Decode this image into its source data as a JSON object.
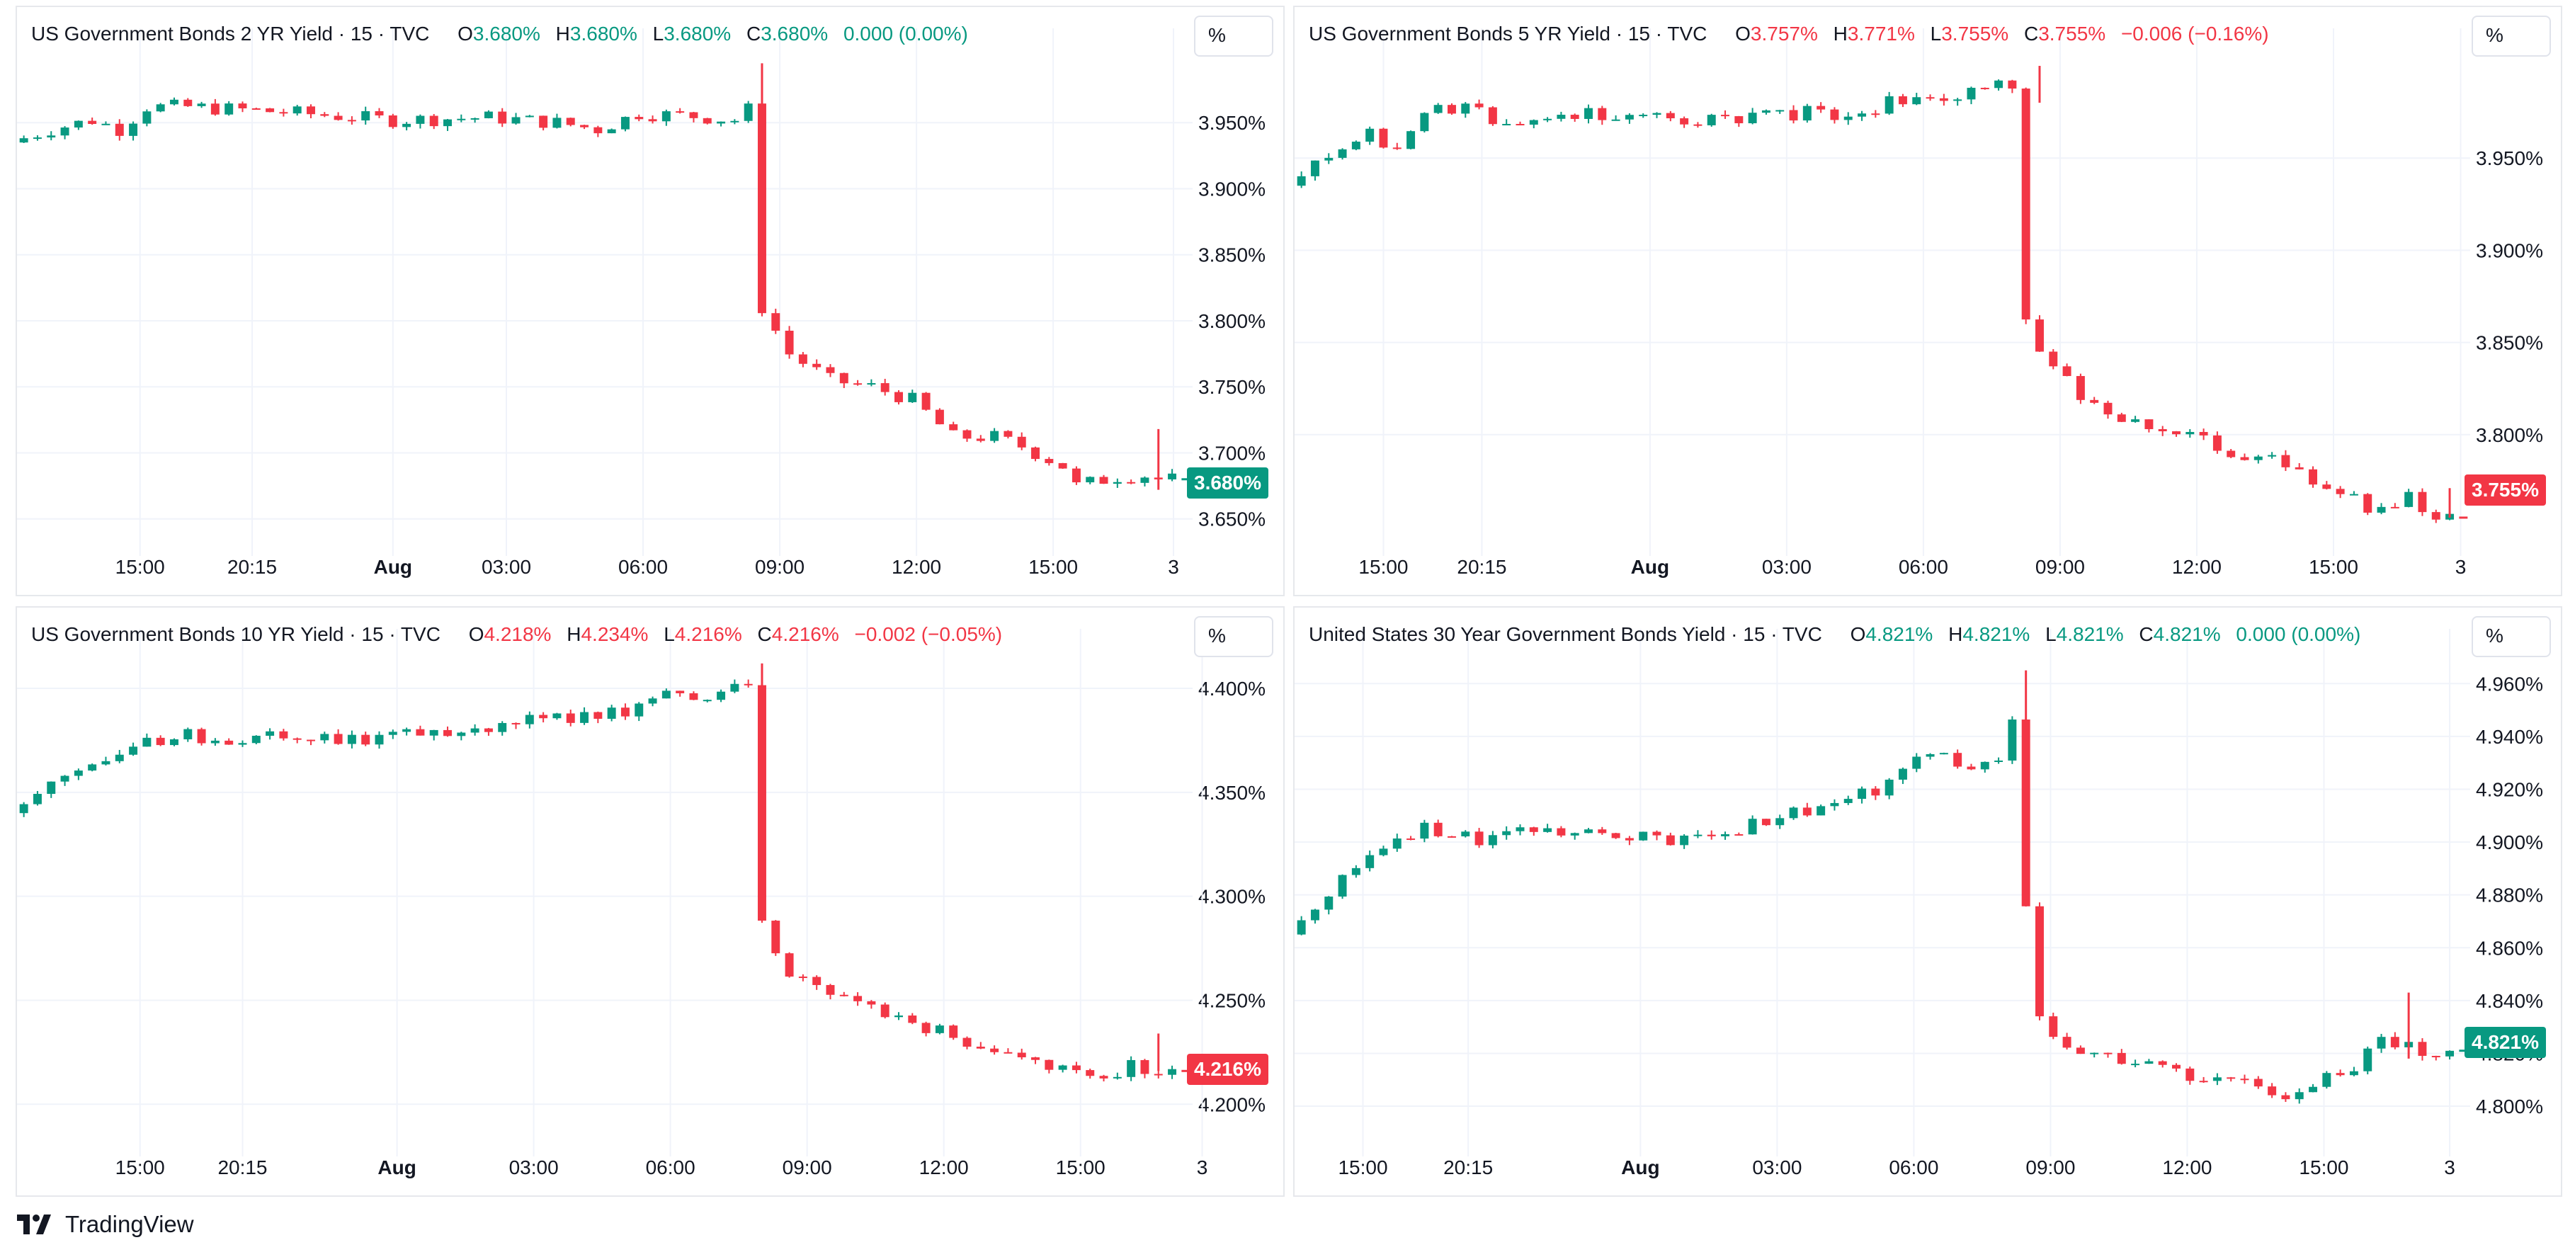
{
  "branding": {
    "label": "TradingView",
    "logo_icon": "tradingview-logo-icon"
  },
  "colors": {
    "up": "#089981",
    "down": "#f23645",
    "grid": "#f0f3fa",
    "axis_text": "#131722"
  },
  "x_axis_labels": [
    "15:00",
    "20:15",
    "Aug",
    "03:00",
    "06:00",
    "09:00",
    "12:00",
    "15:00",
    "3"
  ],
  "panels": [
    {
      "title": "US Government Bonds 2 YR Yield · 15 · TVC",
      "ohlc": {
        "O": "3.680%",
        "H": "3.680%",
        "L": "3.680%",
        "C": "3.680%",
        "change": "0.000 (0.00%)"
      },
      "direction": "up",
      "unit_button": "%",
      "last_price_label": "3.680%"
    },
    {
      "title": "US Government Bonds 5 YR Yield · 15 · TVC",
      "ohlc": {
        "O": "3.757%",
        "H": "3.771%",
        "L": "3.755%",
        "C": "3.755%",
        "change": "−0.006 (−0.16%)"
      },
      "direction": "down",
      "unit_button": "%",
      "last_price_label": "3.755%"
    },
    {
      "title": "US Government Bonds 10 YR Yield · 15 · TVC",
      "ohlc": {
        "O": "4.218%",
        "H": "4.234%",
        "L": "4.216%",
        "C": "4.216%",
        "change": "−0.002 (−0.05%)"
      },
      "direction": "down",
      "unit_button": "%",
      "last_price_label": "4.216%"
    },
    {
      "title": "United States 30 Year Government Bonds Yield · 15 · TVC",
      "ohlc": {
        "O": "4.821%",
        "H": "4.821%",
        "L": "4.821%",
        "C": "4.821%",
        "change": "0.000 (0.00%)"
      },
      "direction": "up",
      "unit_button": "%",
      "last_price_label": "4.821%"
    }
  ],
  "chart_data": [
    {
      "type": "candlestick",
      "series_name": "US Government Bonds 2 YR Yield",
      "ylim": [
        3.63,
        4.0
      ],
      "y_ticks": [
        "3.950%",
        "3.900%",
        "3.850%",
        "3.800%",
        "3.750%",
        "3.700%",
        "3.650%"
      ],
      "y_tick_values": [
        3.95,
        3.9,
        3.85,
        3.8,
        3.75,
        3.7,
        3.65
      ],
      "x_labels": [
        "15:00",
        "20:15",
        "Aug",
        "03:00",
        "06:00",
        "09:00",
        "12:00",
        "15:00",
        "3"
      ],
      "x_label_positions": [
        8.5,
        16.7,
        27.0,
        35.3,
        45.3,
        55.3,
        65.3,
        75.3,
        84.1
      ],
      "last": 3.68,
      "anchors": [
        [
          0,
          3.935
        ],
        [
          3,
          3.945
        ],
        [
          6,
          3.952
        ],
        [
          8,
          3.945
        ],
        [
          10,
          3.962
        ],
        [
          13,
          3.962
        ],
        [
          20,
          3.958
        ],
        [
          28,
          3.952
        ],
        [
          35,
          3.954
        ],
        [
          40,
          3.95
        ],
        [
          43,
          3.945
        ],
        [
          46,
          3.957
        ],
        [
          50,
          3.955
        ],
        [
          53,
          3.952
        ],
        [
          54,
          3.96
        ],
        [
          55,
          3.81
        ],
        [
          57,
          3.775
        ],
        [
          60,
          3.755
        ],
        [
          63,
          3.75
        ],
        [
          66,
          3.74
        ],
        [
          69,
          3.712
        ],
        [
          72,
          3.712
        ],
        [
          74,
          3.705
        ],
        [
          77,
          3.69
        ],
        [
          78,
          3.675
        ],
        [
          81,
          3.682
        ],
        [
          83,
          3.683
        ],
        [
          84,
          3.68
        ]
      ],
      "candles": [],
      "wicks": [
        [
          54,
          3.995,
          3.945
        ],
        [
          83,
          3.718,
          3.672
        ]
      ]
    },
    {
      "type": "candlestick",
      "series_name": "US Government Bonds 5 YR Yield",
      "ylim": [
        3.74,
        4.005
      ],
      "y_ticks": [
        "3.950%",
        "3.900%",
        "3.850%",
        "3.800%"
      ],
      "y_tick_values": [
        3.95,
        3.9,
        3.85,
        3.8
      ],
      "x_labels": [
        "15:00",
        "20:15",
        "Aug",
        "03:00",
        "06:00",
        "09:00",
        "12:00",
        "15:00",
        "3"
      ],
      "x_label_positions": [
        6.0,
        13.2,
        25.5,
        35.5,
        45.5,
        55.5,
        65.5,
        75.5,
        84.8
      ],
      "last": 3.755,
      "anchors": [
        [
          0,
          3.935
        ],
        [
          3,
          3.95
        ],
        [
          6,
          3.962
        ],
        [
          8,
          3.955
        ],
        [
          10,
          3.975
        ],
        [
          13,
          3.978
        ],
        [
          15,
          3.97
        ],
        [
          20,
          3.975
        ],
        [
          28,
          3.972
        ],
        [
          33,
          3.97
        ],
        [
          38,
          3.975
        ],
        [
          41,
          3.97
        ],
        [
          44,
          3.98
        ],
        [
          47,
          3.982
        ],
        [
          50,
          3.985
        ],
        [
          53,
          3.99
        ],
        [
          54,
          3.86
        ],
        [
          56,
          3.835
        ],
        [
          59,
          3.815
        ],
        [
          62,
          3.808
        ],
        [
          66,
          3.8
        ],
        [
          69,
          3.79
        ],
        [
          72,
          3.785
        ],
        [
          75,
          3.775
        ],
        [
          78,
          3.77
        ],
        [
          79,
          3.76
        ],
        [
          82,
          3.765
        ],
        [
          84,
          3.755
        ]
      ],
      "candles": [],
      "wicks": [
        [
          54,
          4.0,
          3.98
        ],
        [
          84,
          3.771,
          3.755
        ]
      ]
    },
    {
      "type": "candlestick",
      "series_name": "US Government Bonds 10 YR Yield",
      "ylim": [
        4.18,
        4.415
      ],
      "y_ticks": [
        "4.400%",
        "4.350%",
        "4.300%",
        "4.250%",
        "4.200%"
      ],
      "y_tick_values": [
        4.4,
        4.35,
        4.3,
        4.25,
        4.2
      ],
      "x_labels": [
        "15:00",
        "20:15",
        "Aug",
        "03:00",
        "06:00",
        "09:00",
        "12:00",
        "15:00",
        "3"
      ],
      "x_label_positions": [
        8.5,
        16.0,
        27.3,
        37.3,
        47.3,
        57.3,
        67.3,
        77.3,
        86.2
      ],
      "last": 4.216,
      "anchors": [
        [
          0,
          4.34
        ],
        [
          3,
          4.352
        ],
        [
          5,
          4.36
        ],
        [
          8,
          4.365
        ],
        [
          10,
          4.375
        ],
        [
          13,
          4.378
        ],
        [
          16,
          4.373
        ],
        [
          20,
          4.378
        ],
        [
          26,
          4.375
        ],
        [
          30,
          4.378
        ],
        [
          35,
          4.382
        ],
        [
          40,
          4.385
        ],
        [
          45,
          4.39
        ],
        [
          47,
          4.398
        ],
        [
          50,
          4.395
        ],
        [
          54,
          4.4
        ],
        [
          55,
          4.29
        ],
        [
          57,
          4.262
        ],
        [
          60,
          4.252
        ],
        [
          63,
          4.248
        ],
        [
          66,
          4.24
        ],
        [
          69,
          4.232
        ],
        [
          72,
          4.228
        ],
        [
          75,
          4.222
        ],
        [
          78,
          4.215
        ],
        [
          80,
          4.212
        ],
        [
          82,
          4.218
        ],
        [
          84,
          4.216
        ]
      ],
      "candles": [],
      "wicks": [
        [
          54,
          4.412,
          4.395
        ],
        [
          83,
          4.234,
          4.216
        ]
      ]
    },
    {
      "type": "candlestick",
      "series_name": "United States 30 Year Government Bonds Yield",
      "ylim": [
        4.785,
        4.97
      ],
      "y_ticks": [
        "4.960%",
        "4.940%",
        "4.920%",
        "4.900%",
        "4.880%",
        "4.860%",
        "4.840%",
        "4.820%",
        "4.800%"
      ],
      "y_tick_values": [
        4.96,
        4.94,
        4.92,
        4.9,
        4.88,
        4.86,
        4.84,
        4.82,
        4.8
      ],
      "x_labels": [
        "15:00",
        "20:15",
        "Aug",
        "03:00",
        "06:00",
        "09:00",
        "12:00",
        "15:00",
        "3"
      ],
      "x_label_positions": [
        4.5,
        12.2,
        24.8,
        34.8,
        44.8,
        54.8,
        64.8,
        74.8,
        84.0
      ],
      "last": 4.821,
      "anchors": [
        [
          0,
          4.865
        ],
        [
          2,
          4.875
        ],
        [
          4,
          4.885
        ],
        [
          6,
          4.895
        ],
        [
          8,
          4.902
        ],
        [
          10,
          4.905
        ],
        [
          14,
          4.9
        ],
        [
          18,
          4.905
        ],
        [
          24,
          4.904
        ],
        [
          28,
          4.9
        ],
        [
          32,
          4.903
        ],
        [
          36,
          4.91
        ],
        [
          40,
          4.915
        ],
        [
          43,
          4.92
        ],
        [
          46,
          4.93
        ],
        [
          48,
          4.935
        ],
        [
          50,
          4.925
        ],
        [
          52,
          4.932
        ],
        [
          53,
          4.945
        ],
        [
          54,
          4.875
        ],
        [
          55,
          4.835
        ],
        [
          57,
          4.82
        ],
        [
          60,
          4.818
        ],
        [
          63,
          4.815
        ],
        [
          66,
          4.812
        ],
        [
          70,
          4.808
        ],
        [
          74,
          4.804
        ],
        [
          76,
          4.81
        ],
        [
          78,
          4.815
        ],
        [
          80,
          4.825
        ],
        [
          82,
          4.822
        ],
        [
          84,
          4.821
        ]
      ],
      "candles": [],
      "wicks": [
        [
          53,
          4.965,
          4.945
        ],
        [
          81,
          4.843,
          4.818
        ]
      ]
    }
  ]
}
